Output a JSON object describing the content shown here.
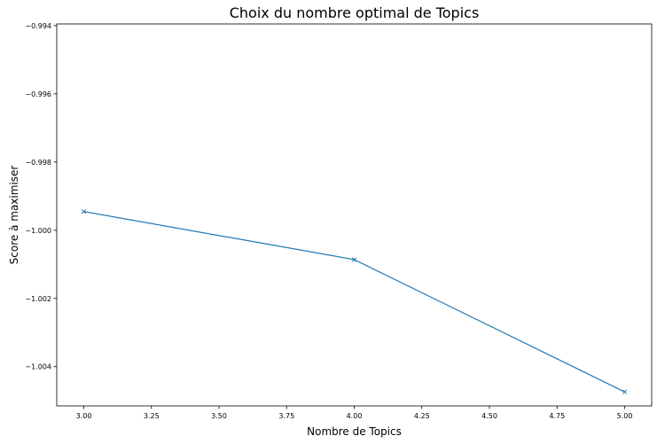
{
  "chart_data": {
    "type": "line",
    "title": "Choix du nombre optimal de Topics",
    "xlabel": "Nombre de Topics",
    "ylabel": "Score à maximiser",
    "x": [
      3,
      4,
      5
    ],
    "series": [
      {
        "values": [
          -0.99945,
          -1.00086,
          -1.00474
        ],
        "color": "#1f77b4",
        "marker": "x"
      }
    ],
    "xlim": [
      2.9,
      5.1
    ],
    "ylim": [
      -1.00515,
      -0.99395
    ],
    "xticks": [
      3.0,
      3.25,
      3.5,
      3.75,
      4.0,
      4.25,
      4.5,
      4.75,
      5.0
    ],
    "xtick_labels": [
      "3.00",
      "3.25",
      "3.50",
      "3.75",
      "4.00",
      "4.25",
      "4.50",
      "4.75",
      "5.00"
    ],
    "yticks": [
      -0.994,
      -0.996,
      -0.998,
      -1.0,
      -1.002,
      -1.004
    ],
    "ytick_labels": [
      "−0.994",
      "−0.996",
      "−0.998",
      "−1.000",
      "−1.002",
      "−1.004"
    ],
    "grid": false,
    "legend": "none"
  }
}
